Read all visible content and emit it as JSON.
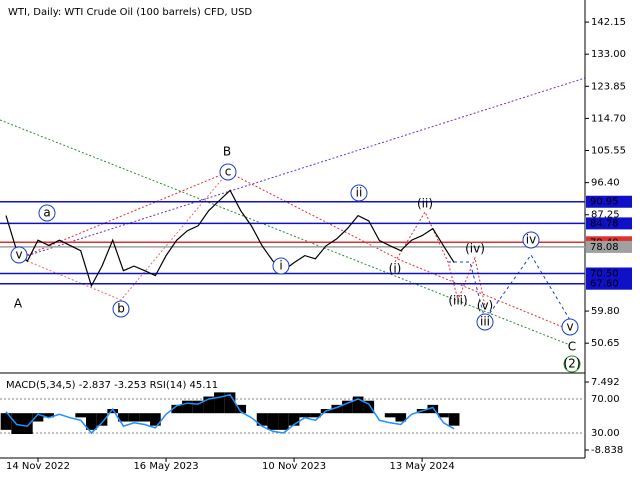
{
  "chart_data": [
    {
      "type": "line",
      "title": "WTI, Daily:  WTI Crude Oil (100 barrels) CFD, USD",
      "categories": [
        null,
        null,
        null,
        "14 Nov 2022",
        null,
        null,
        null,
        null,
        null,
        null,
        null,
        null,
        null,
        null,
        null,
        "16 May 2023",
        null,
        null,
        null,
        null,
        null,
        null,
        null,
        null,
        null,
        null,
        null,
        "10 Nov 2023",
        null,
        null,
        null,
        null,
        null,
        null,
        null,
        null,
        null,
        null,
        null,
        "13 May 2024",
        null,
        null,
        null
      ],
      "series": [
        {
          "color": "#000000",
          "values": [
            87,
            77,
            74,
            80,
            78.5,
            80,
            78.5,
            77,
            67,
            72.6,
            80,
            71.3,
            72.6,
            71.3,
            69.9,
            75.6,
            80,
            82.7,
            84.1,
            88.4,
            91.3,
            94.2,
            88.4,
            84.1,
            78.4,
            74.1,
            71.3,
            73.6,
            75.6,
            74.7,
            78.4,
            80.4,
            83.3,
            87,
            85.5,
            79.9,
            78.4,
            77,
            80,
            81.3,
            83.3,
            78.4,
            73.6
          ]
        }
      ],
      "ylim": [
        42.15,
        148.44
      ],
      "yticks": [
        142.15,
        {
          "value": 133,
          "label": "133.00"
        },
        123.85,
        {
          "value": 114.7,
          "label": "114.70"
        },
        105.55,
        {
          "value": 96.4,
          "label": "96.40"
        },
        87.25,
        {
          "value": 59.8,
          "label": "59.80"
        },
        50.65
      ],
      "levels": [
        {
          "value": 90.95,
          "label": "90.95",
          "color": "#1010c8"
        },
        {
          "value": 84.78,
          "label": "84.78",
          "color": "#1010c8"
        },
        {
          "value": 79.4,
          "label": "79.40",
          "color": "#e03030"
        },
        {
          "value": 78.08,
          "label": "78.08",
          "color": "#a0a0a0"
        },
        {
          "value": 70.5,
          "label": "70.50",
          "color": "#1010c8"
        },
        {
          "value": 67.6,
          "label": "67.60",
          "color": "#1010c8"
        }
      ],
      "annotations": [
        {
          "label": "A",
          "color": "#b03a2e"
        },
        {
          "label": "B",
          "color": "#b03a2e"
        },
        {
          "label": "C",
          "color": "#b03a2e"
        },
        {
          "label": "(2)",
          "color": "#2e8b2e"
        },
        {
          "label": "a",
          "color": "#1a3fc8"
        },
        {
          "label": "b",
          "color": "#1a3fc8"
        },
        {
          "label": "c",
          "color": "#1a3fc8"
        },
        {
          "label": "v",
          "color": "#1a3fc8"
        },
        {
          "label": "i",
          "color": "#1a3fc8"
        },
        {
          "label": "ii",
          "color": "#1a3fc8"
        },
        {
          "label": "iii",
          "color": "#1a3fc8"
        },
        {
          "label": "iv",
          "color": "#1a3fc8"
        },
        {
          "label": "v",
          "color": "#1a3fc8"
        },
        {
          "label": "(i)",
          "color": "#e03030"
        },
        {
          "label": "(ii)",
          "color": "#e03030"
        },
        {
          "label": "(iii)",
          "color": "#e03030"
        },
        {
          "label": "(iv)",
          "color": "#e03030"
        },
        {
          "label": "(v)",
          "color": "#e03030"
        }
      ]
    },
    {
      "type": "macd",
      "title": "MACD(5,34,5) -2.837 -3.253 RSI(14) 45.11",
      "series": [
        {
          "color": "#000000",
          "values": [
            -4,
            -5,
            -5,
            -2,
            -1,
            0,
            0,
            -1,
            -4,
            -3,
            1,
            -2,
            -2,
            -2,
            -3,
            0,
            2,
            3,
            3,
            4,
            5,
            5,
            2,
            0,
            -3,
            -4,
            -4,
            -3,
            -1,
            -1,
            1,
            2,
            3,
            4,
            3,
            0,
            -1,
            -2,
            0,
            1,
            2,
            -1,
            -3
          ]
        },
        {
          "color": "#1e90ff",
          "axis": "y2",
          "values": [
            55,
            40,
            38,
            52,
            48,
            52,
            48,
            45,
            30,
            42,
            58,
            38,
            42,
            40,
            36,
            52,
            62,
            65,
            64,
            70,
            72,
            75,
            55,
            48,
            38,
            32,
            30,
            40,
            48,
            45,
            56,
            60,
            65,
            70,
            64,
            45,
            42,
            40,
            52,
            56,
            60,
            42,
            35
          ]
        }
      ],
      "ylim": [
        -10.76,
        9.41
      ],
      "yticks": [
        7.492,
        -8.838
      ],
      "y2lim": [
        0.6,
        99.4
      ],
      "y2ticks": [
        {
          "value": 70,
          "label": "70.00"
        },
        {
          "value": 30,
          "label": "30.00"
        }
      ]
    }
  ]
}
